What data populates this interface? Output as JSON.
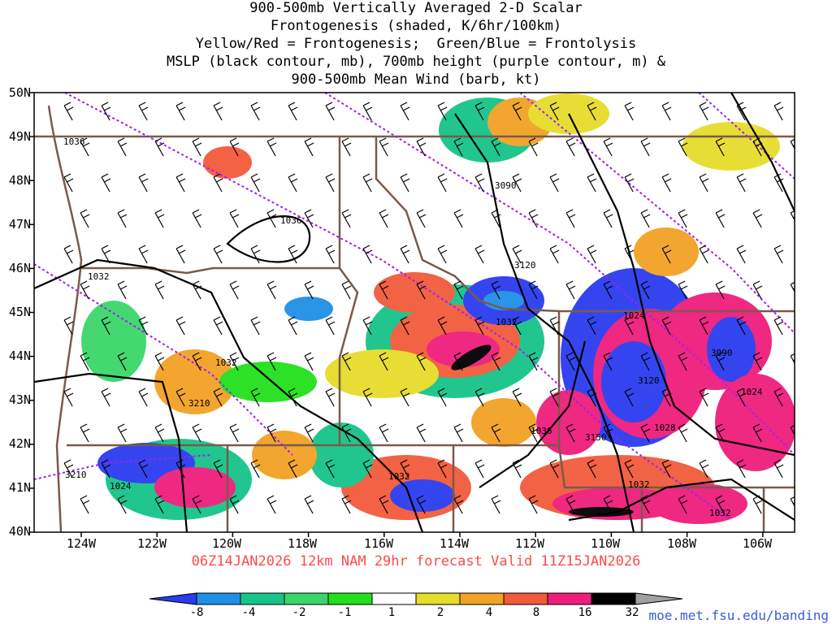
{
  "title": {
    "line1": "900-500mb Vertically Averaged 2-D Scalar",
    "line2": "Frontogenesis (shaded, K/6hr/100km)",
    "line3": "Yellow/Red = Frontogenesis;  Green/Blue = Frontolysis",
    "line4": "MSLP (black contour, mb), 700mb height (purple contour, m) &",
    "line5": "900-500mb Mean Wind (barb, kt)"
  },
  "lat_labels": [
    "50N",
    "49N",
    "48N",
    "47N",
    "46N",
    "45N",
    "44N",
    "43N",
    "42N",
    "41N",
    "40N"
  ],
  "lon_labels": [
    "124W",
    "122W",
    "120W",
    "118W",
    "116W",
    "114W",
    "112W",
    "110W",
    "108W",
    "106W"
  ],
  "contour_labels": {
    "mslp": [
      "1036",
      "1036",
      "1032",
      "1032",
      "1032",
      "1024",
      "1024",
      "1036",
      "1028",
      "1032",
      "1032",
      "1032",
      "1024"
    ],
    "height": [
      "3090",
      "3120",
      "3090",
      "3120",
      "3210",
      "3150",
      "3210"
    ]
  },
  "run_info": "06Z14JAN2026 12km NAM 29hr forecast Valid 11Z15JAN2026",
  "colorbar": {
    "labels": [
      "-8",
      "-4",
      "-2",
      "-1",
      "1",
      "2",
      "4",
      "8",
      "16",
      "32"
    ],
    "colors": [
      "#2a3cf0",
      "#1f8fe6",
      "#16c48a",
      "#3bd66a",
      "#22e01c",
      "#ffffff",
      "#e6dc2a",
      "#f2a224",
      "#f25a3a",
      "#ef1d7c",
      "#000000",
      "#a0a0a0"
    ]
  },
  "credit": "moe.met.fsu.edu/banding",
  "colors": {
    "state_lines": "#7a5a4a",
    "mslp": "#000000",
    "height": "#a020f0"
  }
}
